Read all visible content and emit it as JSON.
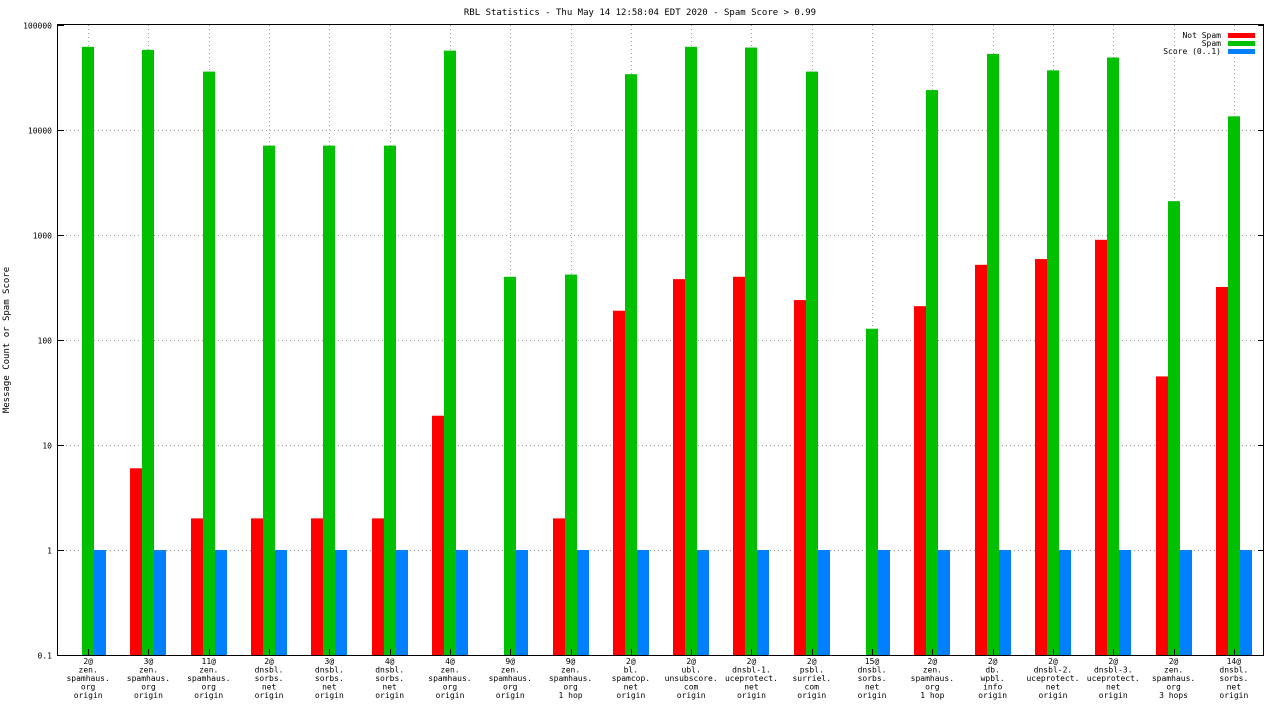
{
  "chart_data": {
    "type": "bar",
    "title": "RBL Statistics - Thu May 14 12:58:04 EDT 2020 - Spam Score > 0.99",
    "xlabel": "",
    "ylabel": "Message Count or Spam Score",
    "yscale": "log",
    "ylim": [
      0.1,
      100000
    ],
    "yticks": [
      {
        "value": 0.1,
        "label": "0.1"
      },
      {
        "value": 1,
        "label": "1"
      },
      {
        "value": 10,
        "label": "10"
      },
      {
        "value": 100,
        "label": "100"
      },
      {
        "value": 1000,
        "label": "1000"
      },
      {
        "value": 10000,
        "label": "10000"
      },
      {
        "value": 100000,
        "label": "100000"
      }
    ],
    "grid": true,
    "legend": "top-right",
    "categories": [
      [
        "2@",
        "zen.",
        "spamhaus.",
        "org",
        "origin"
      ],
      [
        "3@",
        "zen.",
        "spamhaus.",
        "org",
        "origin"
      ],
      [
        "11@",
        "zen.",
        "spamhaus.",
        "org",
        "origin"
      ],
      [
        "2@",
        "dnsbl.",
        "sorbs.",
        "net",
        "origin"
      ],
      [
        "3@",
        "dnsbl.",
        "sorbs.",
        "net",
        "origin"
      ],
      [
        "4@",
        "dnsbl.",
        "sorbs.",
        "net",
        "origin"
      ],
      [
        "4@",
        "zen.",
        "spamhaus.",
        "org",
        "origin"
      ],
      [
        "9@",
        "zen.",
        "spamhaus.",
        "org",
        "origin"
      ],
      [
        "9@",
        "zen.",
        "spamhaus.",
        "org",
        "1 hop"
      ],
      [
        "2@",
        "bl.",
        "spamcop.",
        "net",
        "origin"
      ],
      [
        "2@",
        "ubl.",
        "unsubscore.",
        "com",
        "origin"
      ],
      [
        "2@",
        "dnsbl-1.",
        "uceprotect.",
        "net",
        "origin"
      ],
      [
        "2@",
        "psbl.",
        "surriel.",
        "com",
        "origin"
      ],
      [
        "15@",
        "dnsbl.",
        "sorbs.",
        "net",
        "origin"
      ],
      [
        "2@",
        "zen.",
        "spamhaus.",
        "org",
        "1 hop"
      ],
      [
        "2@",
        "db.",
        "wpbl.",
        "info",
        "origin"
      ],
      [
        "2@",
        "dnsbl-2.",
        "uceprotect.",
        "net",
        "origin"
      ],
      [
        "2@",
        "dnsbl-3.",
        "uceprotect.",
        "net",
        "origin"
      ],
      [
        "2@",
        "zen.",
        "spamhaus.",
        "org",
        "3 hops"
      ],
      [
        "14@",
        "dnsbl.",
        "sorbs.",
        "net",
        "origin"
      ]
    ],
    "series": [
      {
        "name": "Not Spam",
        "color": "#ff0000",
        "values": [
          null,
          6,
          2,
          2,
          2,
          2,
          19,
          null,
          2,
          190,
          380,
          400,
          240,
          null,
          210,
          520,
          590,
          900,
          45,
          320
        ]
      },
      {
        "name": "Spam",
        "color": "#00c000",
        "values": [
          62000,
          58000,
          36000,
          7100,
          7100,
          7100,
          57000,
          400,
          420,
          34000,
          62000,
          61000,
          36000,
          128,
          24000,
          53000,
          37000,
          49000,
          2100,
          13500
        ]
      },
      {
        "name": "Score (0..1)",
        "color": "#0080ff",
        "values": [
          1,
          1,
          1,
          1,
          1,
          1,
          1,
          1,
          1,
          1,
          1,
          1,
          1,
          1,
          1,
          1,
          1,
          1,
          1,
          1
        ]
      }
    ]
  }
}
